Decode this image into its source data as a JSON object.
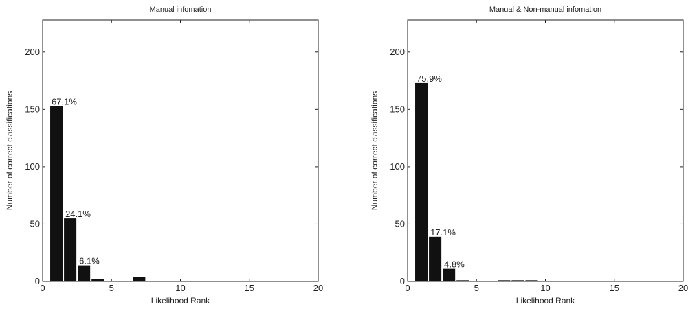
{
  "chart_data": [
    {
      "type": "bar",
      "title": "Manual infomation",
      "xlabel": "Likelihood Rank",
      "ylabel": "Number of correct classifications",
      "xlim": [
        0,
        20
      ],
      "ylim": [
        0,
        228
      ],
      "xticks": [
        0,
        5,
        10,
        15,
        20
      ],
      "yticks": [
        0,
        50,
        100,
        150,
        200
      ],
      "bar_width": 0.9,
      "x": [
        1,
        2,
        3,
        4,
        7
      ],
      "values": [
        153,
        55,
        14,
        2,
        4
      ],
      "annotations": [
        {
          "x": 1,
          "y": 153,
          "text": "67.1%"
        },
        {
          "x": 2,
          "y": 55,
          "text": "24.1%"
        },
        {
          "x": 3,
          "y": 14,
          "text": "6.1%"
        }
      ],
      "grid": false,
      "bar_color": "#111111"
    },
    {
      "type": "bar",
      "title": "Manual & Non-manual infomation",
      "xlabel": "Likelihood Rank",
      "ylabel": "Number of correct classifications",
      "xlim": [
        0,
        20
      ],
      "ylim": [
        0,
        228
      ],
      "xticks": [
        0,
        5,
        10,
        15,
        20
      ],
      "yticks": [
        0,
        50,
        100,
        150,
        200
      ],
      "bar_width": 0.9,
      "x": [
        1,
        2,
        3,
        4,
        7,
        8,
        9
      ],
      "values": [
        173,
        39,
        11,
        1,
        1,
        1,
        1
      ],
      "annotations": [
        {
          "x": 1,
          "y": 173,
          "text": "75.9%"
        },
        {
          "x": 2,
          "y": 39,
          "text": "17.1%"
        },
        {
          "x": 3,
          "y": 11,
          "text": "4.8%"
        }
      ],
      "grid": false,
      "bar_color": "#111111"
    }
  ]
}
